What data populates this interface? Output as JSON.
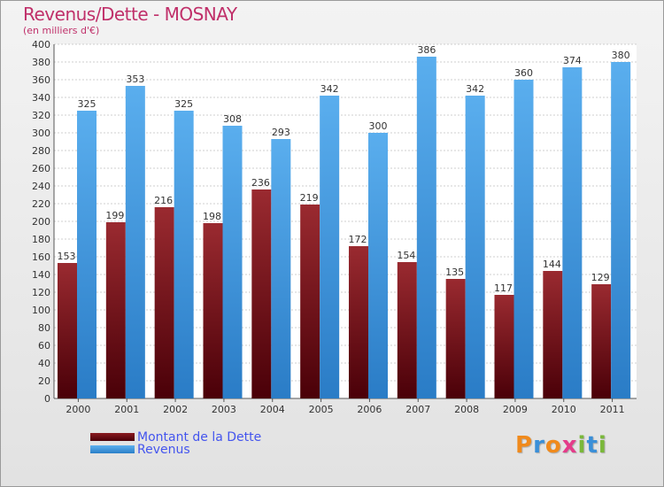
{
  "chart_data": {
    "type": "bar",
    "title": "Revenus/Dette - MOSNAY",
    "subtitle": "(en milliers d'€)",
    "categories": [
      "2000",
      "2001",
      "2002",
      "2003",
      "2004",
      "2005",
      "2006",
      "2007",
      "2008",
      "2009",
      "2010",
      "2011"
    ],
    "series": [
      {
        "name": "Montant de la Dette",
        "color": "#6b0a10",
        "values": [
          153,
          199,
          216,
          198,
          236,
          219,
          172,
          154,
          135,
          117,
          144,
          129
        ]
      },
      {
        "name": "Revenus",
        "color": "#3d95dd",
        "values": [
          325,
          353,
          325,
          308,
          293,
          342,
          300,
          386,
          342,
          360,
          374,
          380
        ]
      }
    ],
    "ylim": [
      0,
      400
    ],
    "ytick_step": 20,
    "grid": true,
    "legend_position": "bottom-left"
  },
  "logo": {
    "letters": [
      {
        "ch": "P",
        "color": "#f08a1c"
      },
      {
        "ch": "r",
        "color": "#3a8fd8"
      },
      {
        "ch": "o",
        "color": "#f08a1c"
      },
      {
        "ch": "x",
        "color": "#e43c8a"
      },
      {
        "ch": "i",
        "color": "#7ab83a"
      },
      {
        "ch": "t",
        "color": "#3a8fd8"
      },
      {
        "ch": "i",
        "color": "#7ab83a"
      }
    ]
  }
}
